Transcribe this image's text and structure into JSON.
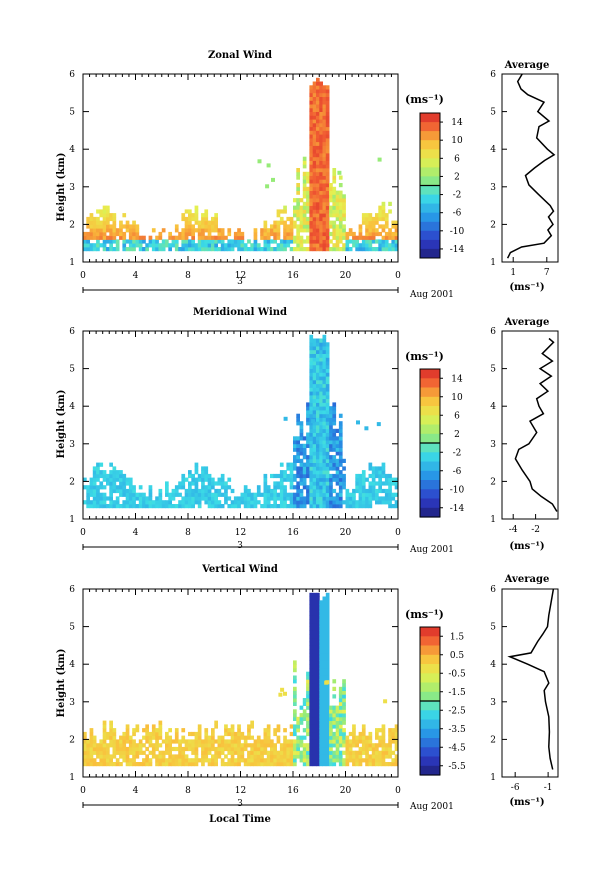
{
  "chart_data": [
    {
      "type": "heatmap",
      "title": "Zonal Wind",
      "xlabel": "",
      "ylabel": "Height (km)",
      "date_label": "Aug 2001",
      "day_label": "3",
      "x_ticks": [
        "0",
        "4",
        "8",
        "12",
        "16",
        "20",
        "0"
      ],
      "y_ticks": [
        "1",
        "2",
        "3",
        "4",
        "5",
        "6"
      ],
      "xlim": [
        0,
        24
      ],
      "ylim": [
        1,
        6
      ],
      "colorbar": {
        "unit": "(ms⁻¹)",
        "ticks": [
          "14",
          "10",
          "6",
          "2",
          "-2",
          "-6",
          "-10",
          "-14"
        ],
        "range": [
          -16,
          16
        ]
      },
      "profile": {
        "title": "Average",
        "xlabel": "(ms⁻¹)",
        "x_ticks": [
          "1",
          "7"
        ],
        "xlim": [
          -1,
          9
        ],
        "y_ticks": [
          "1",
          "2",
          "3",
          "4",
          "5",
          "6"
        ],
        "ylim": [
          1,
          6
        ],
        "points": [
          [
            0,
            1.1
          ],
          [
            0.5,
            1.25
          ],
          [
            2.5,
            1.4
          ],
          [
            6.5,
            1.5
          ],
          [
            7.8,
            1.7
          ],
          [
            7.2,
            1.85
          ],
          [
            8.1,
            2.0
          ],
          [
            7.3,
            2.2
          ],
          [
            8.2,
            2.35
          ],
          [
            7.6,
            2.5
          ],
          [
            5.5,
            2.8
          ],
          [
            3.8,
            3.05
          ],
          [
            3.2,
            3.3
          ],
          [
            4.8,
            3.5
          ],
          [
            6.6,
            3.7
          ],
          [
            8.3,
            3.85
          ],
          [
            7.1,
            4.0
          ],
          [
            5.2,
            4.3
          ],
          [
            5.6,
            4.6
          ],
          [
            7.4,
            4.75
          ],
          [
            5.4,
            5.0
          ],
          [
            6.5,
            5.25
          ],
          [
            3.6,
            5.45
          ],
          [
            2.4,
            5.6
          ],
          [
            1.8,
            5.8
          ],
          [
            2.6,
            6.0
          ]
        ]
      }
    },
    {
      "type": "heatmap",
      "title": "Meridional Wind",
      "xlabel": "",
      "ylabel": "Height (km)",
      "date_label": "Aug 2001",
      "day_label": "3",
      "x_ticks": [
        "0",
        "4",
        "8",
        "12",
        "16",
        "20",
        "0"
      ],
      "y_ticks": [
        "1",
        "2",
        "3",
        "4",
        "5",
        "6"
      ],
      "xlim": [
        0,
        24
      ],
      "ylim": [
        1,
        6
      ],
      "colorbar": {
        "unit": "(ms⁻¹)",
        "ticks": [
          "14",
          "10",
          "6",
          "2",
          "-2",
          "-6",
          "-10",
          "-14"
        ],
        "range": [
          -16,
          16
        ]
      },
      "profile": {
        "title": "Average",
        "xlabel": "(ms⁻¹)",
        "x_ticks": [
          "-4",
          "-2"
        ],
        "xlim": [
          -5,
          0
        ],
        "y_ticks": [
          "1",
          "2",
          "3",
          "4",
          "5",
          "6"
        ],
        "ylim": [
          1,
          6
        ],
        "points": [
          [
            -0.1,
            1.2
          ],
          [
            -0.5,
            1.4
          ],
          [
            -1.5,
            1.6
          ],
          [
            -2.3,
            1.8
          ],
          [
            -2.5,
            2.0
          ],
          [
            -3.2,
            2.3
          ],
          [
            -3.8,
            2.6
          ],
          [
            -3.5,
            2.85
          ],
          [
            -2.6,
            3.0
          ],
          [
            -1.9,
            3.3
          ],
          [
            -2.5,
            3.6
          ],
          [
            -1.3,
            3.8
          ],
          [
            -1.7,
            4.0
          ],
          [
            -1.9,
            4.2
          ],
          [
            -0.9,
            4.4
          ],
          [
            -1.6,
            4.6
          ],
          [
            -0.6,
            4.8
          ],
          [
            -1.6,
            5.0
          ],
          [
            -0.5,
            5.2
          ],
          [
            -1.4,
            5.4
          ],
          [
            -0.4,
            5.7
          ],
          [
            -0.8,
            5.8
          ]
        ]
      }
    },
    {
      "type": "heatmap",
      "title": "Vertical Wind",
      "xlabel": "Local Time",
      "ylabel": "Height (km)",
      "date_label": "Aug 2001",
      "day_label": "3",
      "x_ticks": [
        "0",
        "4",
        "8",
        "12",
        "16",
        "20",
        "0"
      ],
      "y_ticks": [
        "1",
        "2",
        "3",
        "4",
        "5",
        "6"
      ],
      "xlim": [
        0,
        24
      ],
      "ylim": [
        1,
        6
      ],
      "colorbar": {
        "unit": "(ms⁻¹)",
        "ticks": [
          "1.5",
          "0.5",
          "-0.5",
          "-1.5",
          "-2.5",
          "-3.5",
          "-4.5",
          "-5.5"
        ],
        "range": [
          -6,
          2
        ]
      },
      "profile": {
        "title": "Average",
        "xlabel": "(ms⁻¹)",
        "x_ticks": [
          "-6",
          "-1"
        ],
        "xlim": [
          -8,
          0.5
        ],
        "y_ticks": [
          "1",
          "2",
          "3",
          "4",
          "5",
          "6"
        ],
        "ylim": [
          1,
          6
        ],
        "points": [
          [
            -0.3,
            1.2
          ],
          [
            -0.7,
            1.5
          ],
          [
            -0.9,
            1.8
          ],
          [
            -0.8,
            2.2
          ],
          [
            -0.9,
            2.6
          ],
          [
            -1.4,
            3.0
          ],
          [
            -1.6,
            3.3
          ],
          [
            -0.9,
            3.5
          ],
          [
            -1.6,
            3.8
          ],
          [
            -4.1,
            4.0
          ],
          [
            -6.8,
            4.2
          ],
          [
            -3.6,
            4.3
          ],
          [
            -2.6,
            4.6
          ],
          [
            -1.8,
            4.8
          ],
          [
            -1.1,
            5.0
          ],
          [
            -0.9,
            5.3
          ],
          [
            -0.6,
            5.6
          ],
          [
            -0.2,
            6.0
          ]
        ]
      }
    }
  ]
}
